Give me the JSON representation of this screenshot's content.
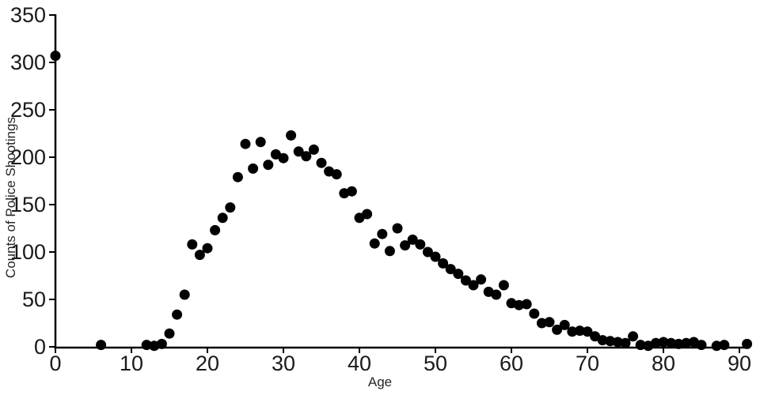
{
  "figure": {
    "background": "#ffffff",
    "title": ""
  },
  "chart_data": {
    "type": "scatter",
    "title": "",
    "xlabel": "Age",
    "ylabel": "Counts of Police Shootings",
    "xlim": [
      0,
      93
    ],
    "ylim": [
      0,
      350
    ],
    "x_ticks": [
      0,
      10,
      20,
      30,
      40,
      50,
      60,
      70,
      80,
      90
    ],
    "y_ticks": [
      0,
      50,
      100,
      150,
      200,
      250,
      300,
      350
    ],
    "grid": false,
    "legend": null,
    "marker_color": "#000000",
    "axis_color": "#000000",
    "text_color": "#1a1a1a",
    "x": [
      0,
      6,
      12,
      13,
      14,
      15,
      16,
      17,
      18,
      19,
      20,
      21,
      22,
      23,
      24,
      25,
      26,
      27,
      28,
      29,
      30,
      31,
      32,
      33,
      34,
      35,
      36,
      37,
      38,
      39,
      40,
      41,
      42,
      43,
      44,
      45,
      46,
      47,
      48,
      49,
      50,
      51,
      52,
      53,
      54,
      55,
      56,
      57,
      58,
      59,
      60,
      61,
      62,
      63,
      64,
      65,
      66,
      67,
      68,
      69,
      70,
      71,
      72,
      73,
      74,
      75,
      76,
      77,
      78,
      79,
      80,
      81,
      82,
      83,
      84,
      85,
      87,
      88,
      91
    ],
    "y": [
      307,
      2,
      2,
      1,
      3,
      14,
      34,
      55,
      108,
      97,
      104,
      123,
      136,
      147,
      179,
      214,
      188,
      216,
      192,
      203,
      199,
      223,
      206,
      201,
      208,
      194,
      185,
      182,
      162,
      164,
      136,
      140,
      109,
      119,
      101,
      125,
      107,
      113,
      108,
      100,
      95,
      88,
      82,
      77,
      70,
      65,
      71,
      58,
      55,
      65,
      46,
      44,
      45,
      35,
      25,
      26,
      18,
      23,
      16,
      17,
      16,
      11,
      7,
      6,
      5,
      4,
      11,
      2,
      1,
      4,
      5,
      4,
      3,
      4,
      5,
      2,
      1,
      2,
      3
    ]
  }
}
